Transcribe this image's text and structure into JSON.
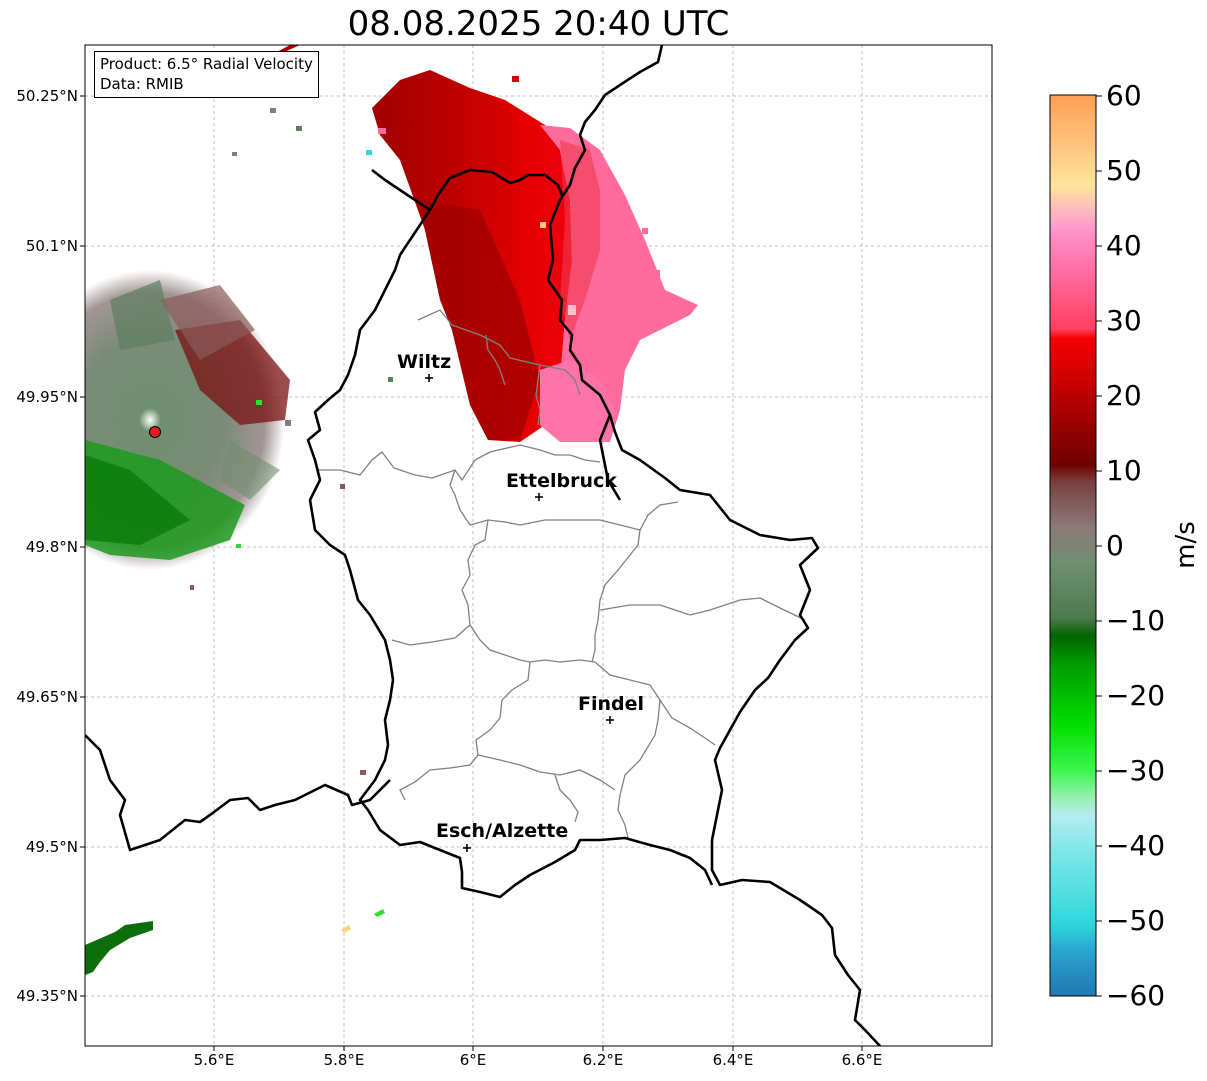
{
  "title": "08.08.2025 20:40 UTC",
  "info_box": {
    "line1": "Product: 6.5° Radial Velocity",
    "line2": "Data: RMIB"
  },
  "axes": {
    "lat_ticks": [
      "50.25°N",
      "50.1°N",
      "49.95°N",
      "49.8°N",
      "49.65°N",
      "49.5°N",
      "49.35°N"
    ],
    "lon_ticks": [
      "5.6°E",
      "5.8°E",
      "6°E",
      "6.2°E",
      "6.4°E",
      "6.6°E"
    ],
    "lat_range": [
      49.3,
      50.3
    ],
    "lon_range": [
      5.4,
      6.8
    ],
    "gridlines": true
  },
  "colorbar": {
    "label": "m/s",
    "ticks": [
      "60",
      "50",
      "40",
      "30",
      "20",
      "10",
      "0",
      "−10",
      "−20",
      "−30",
      "−40",
      "−50",
      "−60"
    ],
    "range": [
      -60,
      60
    ]
  },
  "cities": [
    {
      "name": "Wiltz",
      "lat": 49.968,
      "lon": 5.932
    },
    {
      "name": "Ettelbruck",
      "lat": 49.848,
      "lon": 6.103
    },
    {
      "name": "Findel",
      "lat": 49.627,
      "lon": 6.211
    },
    {
      "name": "Esch/Alzette",
      "lat": 49.499,
      "lon": 5.98
    }
  ],
  "radar_site": {
    "lat": 49.915,
    "lon": 5.506
  },
  "colors": {
    "border": "#000000",
    "canton_lines": "#808080",
    "radar_marker": "#e41a1c"
  }
}
